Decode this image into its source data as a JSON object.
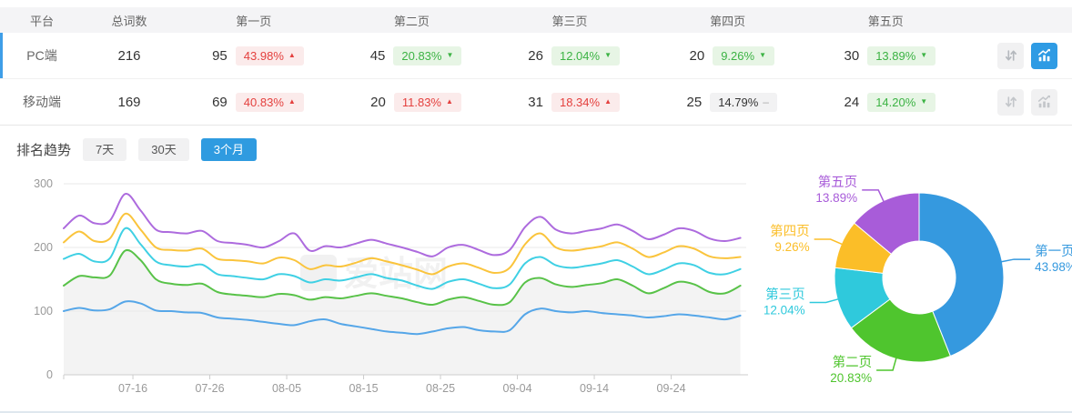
{
  "table": {
    "headers": {
      "platform": "平台",
      "total": "总词数",
      "pages": [
        "第一页",
        "第二页",
        "第三页",
        "第四页",
        "第五页"
      ]
    },
    "rows": [
      {
        "platform": "PC端",
        "total": "216",
        "selected": true,
        "pages": [
          {
            "count": "95",
            "pct": "43.98%",
            "trend": "up"
          },
          {
            "count": "45",
            "pct": "20.83%",
            "trend": "down"
          },
          {
            "count": "26",
            "pct": "12.04%",
            "trend": "down"
          },
          {
            "count": "20",
            "pct": "9.26%",
            "trend": "down"
          },
          {
            "count": "30",
            "pct": "13.89%",
            "trend": "down"
          }
        ]
      },
      {
        "platform": "移动端",
        "total": "169",
        "selected": false,
        "pages": [
          {
            "count": "69",
            "pct": "40.83%",
            "trend": "up"
          },
          {
            "count": "20",
            "pct": "11.83%",
            "trend": "up"
          },
          {
            "count": "31",
            "pct": "18.34%",
            "trend": "up"
          },
          {
            "count": "25",
            "pct": "14.79%",
            "trend": "flat"
          },
          {
            "count": "24",
            "pct": "14.20%",
            "trend": "down"
          }
        ]
      }
    ]
  },
  "trend": {
    "label": "排名趋势",
    "ranges": [
      "7天",
      "30天",
      "3个月"
    ],
    "active_range": "3个月"
  },
  "watermark": "爱站网",
  "colors": {
    "accent_blue": "#2F9BE0",
    "up_red": "#E4403E",
    "up_red_bg": "#FBEBEB",
    "down_green": "#3CB344",
    "down_green_bg": "#E7F5E5",
    "flat_bg": "#F2F2F3",
    "header_bg": "#F4F4F6",
    "axis_text": "#999999",
    "grid_line": "#E8E8E8"
  },
  "chart_data": [
    {
      "type": "line",
      "title": "排名趋势 3个月",
      "x_start": "07-07",
      "x_step_days": 2,
      "x_tick_days": [
        9,
        19,
        29,
        39,
        49,
        59,
        69,
        79
      ],
      "x_tick_labels": [
        "07-16",
        "07-26",
        "08-05",
        "08-15",
        "08-25",
        "09-04",
        "09-14",
        "09-24"
      ],
      "ylim": [
        0,
        300
      ],
      "y_ticks": [
        0,
        100,
        200,
        300
      ],
      "grid": true,
      "area_fill_series": "第二页",
      "area_fill_color": "#F3F3F3",
      "series": [
        {
          "name": "第一页",
          "color": "#55A6E8",
          "values": [
            100,
            105,
            101,
            103,
            115,
            112,
            101,
            100,
            98,
            97,
            90,
            88,
            86,
            83,
            80,
            78,
            84,
            87,
            80,
            76,
            72,
            68,
            66,
            64,
            68,
            73,
            75,
            70,
            68,
            70,
            95,
            104,
            100,
            98,
            100,
            97,
            95,
            93,
            90,
            92,
            95,
            93,
            90,
            87,
            93
          ]
        },
        {
          "name": "第二页",
          "color": "#58C248",
          "values": [
            140,
            155,
            153,
            156,
            195,
            180,
            150,
            143,
            141,
            143,
            130,
            126,
            124,
            122,
            127,
            125,
            118,
            122,
            120,
            124,
            128,
            124,
            120,
            114,
            110,
            118,
            122,
            116,
            110,
            114,
            145,
            152,
            142,
            138,
            141,
            144,
            150,
            140,
            128,
            136,
            146,
            142,
            130,
            128,
            140
          ]
        },
        {
          "name": "第三页",
          "color": "#3FD0E4",
          "values": [
            182,
            190,
            178,
            183,
            230,
            205,
            178,
            172,
            170,
            173,
            158,
            155,
            152,
            150,
            158,
            155,
            145,
            150,
            148,
            153,
            158,
            152,
            148,
            140,
            135,
            146,
            150,
            143,
            136,
            142,
            175,
            185,
            172,
            168,
            171,
            175,
            180,
            170,
            158,
            165,
            175,
            172,
            160,
            158,
            166
          ]
        },
        {
          "name": "第四页",
          "color": "#FAC43C",
          "values": [
            208,
            225,
            210,
            214,
            253,
            228,
            200,
            196,
            195,
            198,
            182,
            180,
            178,
            175,
            184,
            180,
            166,
            172,
            170,
            176,
            183,
            178,
            172,
            165,
            158,
            170,
            175,
            168,
            160,
            168,
            205,
            222,
            200,
            195,
            198,
            202,
            208,
            198,
            185,
            192,
            202,
            198,
            186,
            183,
            185
          ]
        },
        {
          "name": "第五页",
          "color": "#AD6BDE",
          "values": [
            230,
            250,
            238,
            242,
            284,
            258,
            228,
            224,
            222,
            226,
            210,
            207,
            204,
            200,
            210,
            222,
            195,
            202,
            200,
            206,
            212,
            206,
            200,
            193,
            186,
            200,
            204,
            196,
            188,
            196,
            232,
            248,
            228,
            222,
            226,
            230,
            236,
            226,
            213,
            220,
            230,
            226,
            214,
            210,
            215
          ]
        }
      ]
    },
    {
      "type": "pie",
      "donut": true,
      "slices": [
        {
          "label": "第一页",
          "value": 43.98,
          "pct_label": "43.98%",
          "color": "#3599DF"
        },
        {
          "label": "第二页",
          "value": 20.83,
          "pct_label": "20.83%",
          "color": "#4FC52E"
        },
        {
          "label": "第三页",
          "value": 12.04,
          "pct_label": "12.04%",
          "color": "#2FC9DC"
        },
        {
          "label": "第四页",
          "value": 9.26,
          "pct_label": "9.26%",
          "color": "#FBBE28"
        },
        {
          "label": "第五页",
          "value": 13.89,
          "pct_label": "13.89%",
          "color": "#A85CD9"
        }
      ]
    }
  ]
}
